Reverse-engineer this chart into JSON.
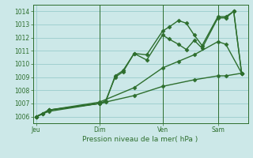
{
  "background_color": "#cce8e8",
  "grid_color": "#99cccc",
  "line_color": "#2d6e2d",
  "xlabel": "Pression niveau de la mer( hPa )",
  "ylim": [
    1005.5,
    1014.5
  ],
  "yticks": [
    1006,
    1007,
    1008,
    1009,
    1010,
    1011,
    1012,
    1013,
    1014
  ],
  "xlim": [
    -0.1,
    6.7
  ],
  "day_positions": [
    0.0,
    2.0,
    4.0,
    5.75
  ],
  "day_labels": [
    "Jeu",
    "Dim",
    "Ven",
    "Sam"
  ],
  "series": [
    {
      "x": [
        0.0,
        0.2,
        0.4,
        2.0,
        2.2,
        2.5,
        2.75,
        3.1,
        3.5,
        4.0,
        4.2,
        4.5,
        4.75,
        5.0,
        5.25,
        5.75,
        6.0,
        6.25,
        6.5
      ],
      "y": [
        1006.0,
        1006.2,
        1006.5,
        1007.0,
        1007.1,
        1009.1,
        1009.5,
        1010.8,
        1010.7,
        1012.5,
        1012.8,
        1013.3,
        1013.1,
        1012.2,
        1011.4,
        1013.6,
        1013.6,
        1014.0,
        1009.3
      ]
    },
    {
      "x": [
        0.0,
        0.2,
        0.4,
        2.0,
        2.2,
        2.5,
        2.75,
        3.1,
        3.5,
        4.0,
        4.2,
        4.5,
        4.75,
        5.0,
        5.25,
        5.75,
        6.0,
        6.25,
        6.5
      ],
      "y": [
        1006.0,
        1006.2,
        1006.5,
        1007.0,
        1007.2,
        1009.0,
        1009.4,
        1010.8,
        1010.3,
        1012.2,
        1011.9,
        1011.5,
        1011.1,
        1011.8,
        1011.2,
        1013.5,
        1013.5,
        1014.0,
        1009.3
      ]
    },
    {
      "x": [
        0.0,
        0.4,
        2.0,
        3.1,
        4.0,
        4.5,
        5.0,
        5.75,
        6.0,
        6.5
      ],
      "y": [
        1006.0,
        1006.5,
        1007.1,
        1008.2,
        1009.7,
        1010.2,
        1010.7,
        1011.7,
        1011.5,
        1009.3
      ]
    },
    {
      "x": [
        0.0,
        0.4,
        2.0,
        3.1,
        4.0,
        5.0,
        5.75,
        6.0,
        6.5
      ],
      "y": [
        1006.0,
        1006.4,
        1007.0,
        1007.6,
        1008.3,
        1008.8,
        1009.1,
        1009.1,
        1009.3
      ]
    }
  ],
  "vlines": [
    2.0,
    4.0,
    5.75
  ],
  "marker": "D",
  "markersize": 2.5,
  "linewidth": 1.0,
  "figsize": [
    3.2,
    2.0
  ],
  "dpi": 100
}
